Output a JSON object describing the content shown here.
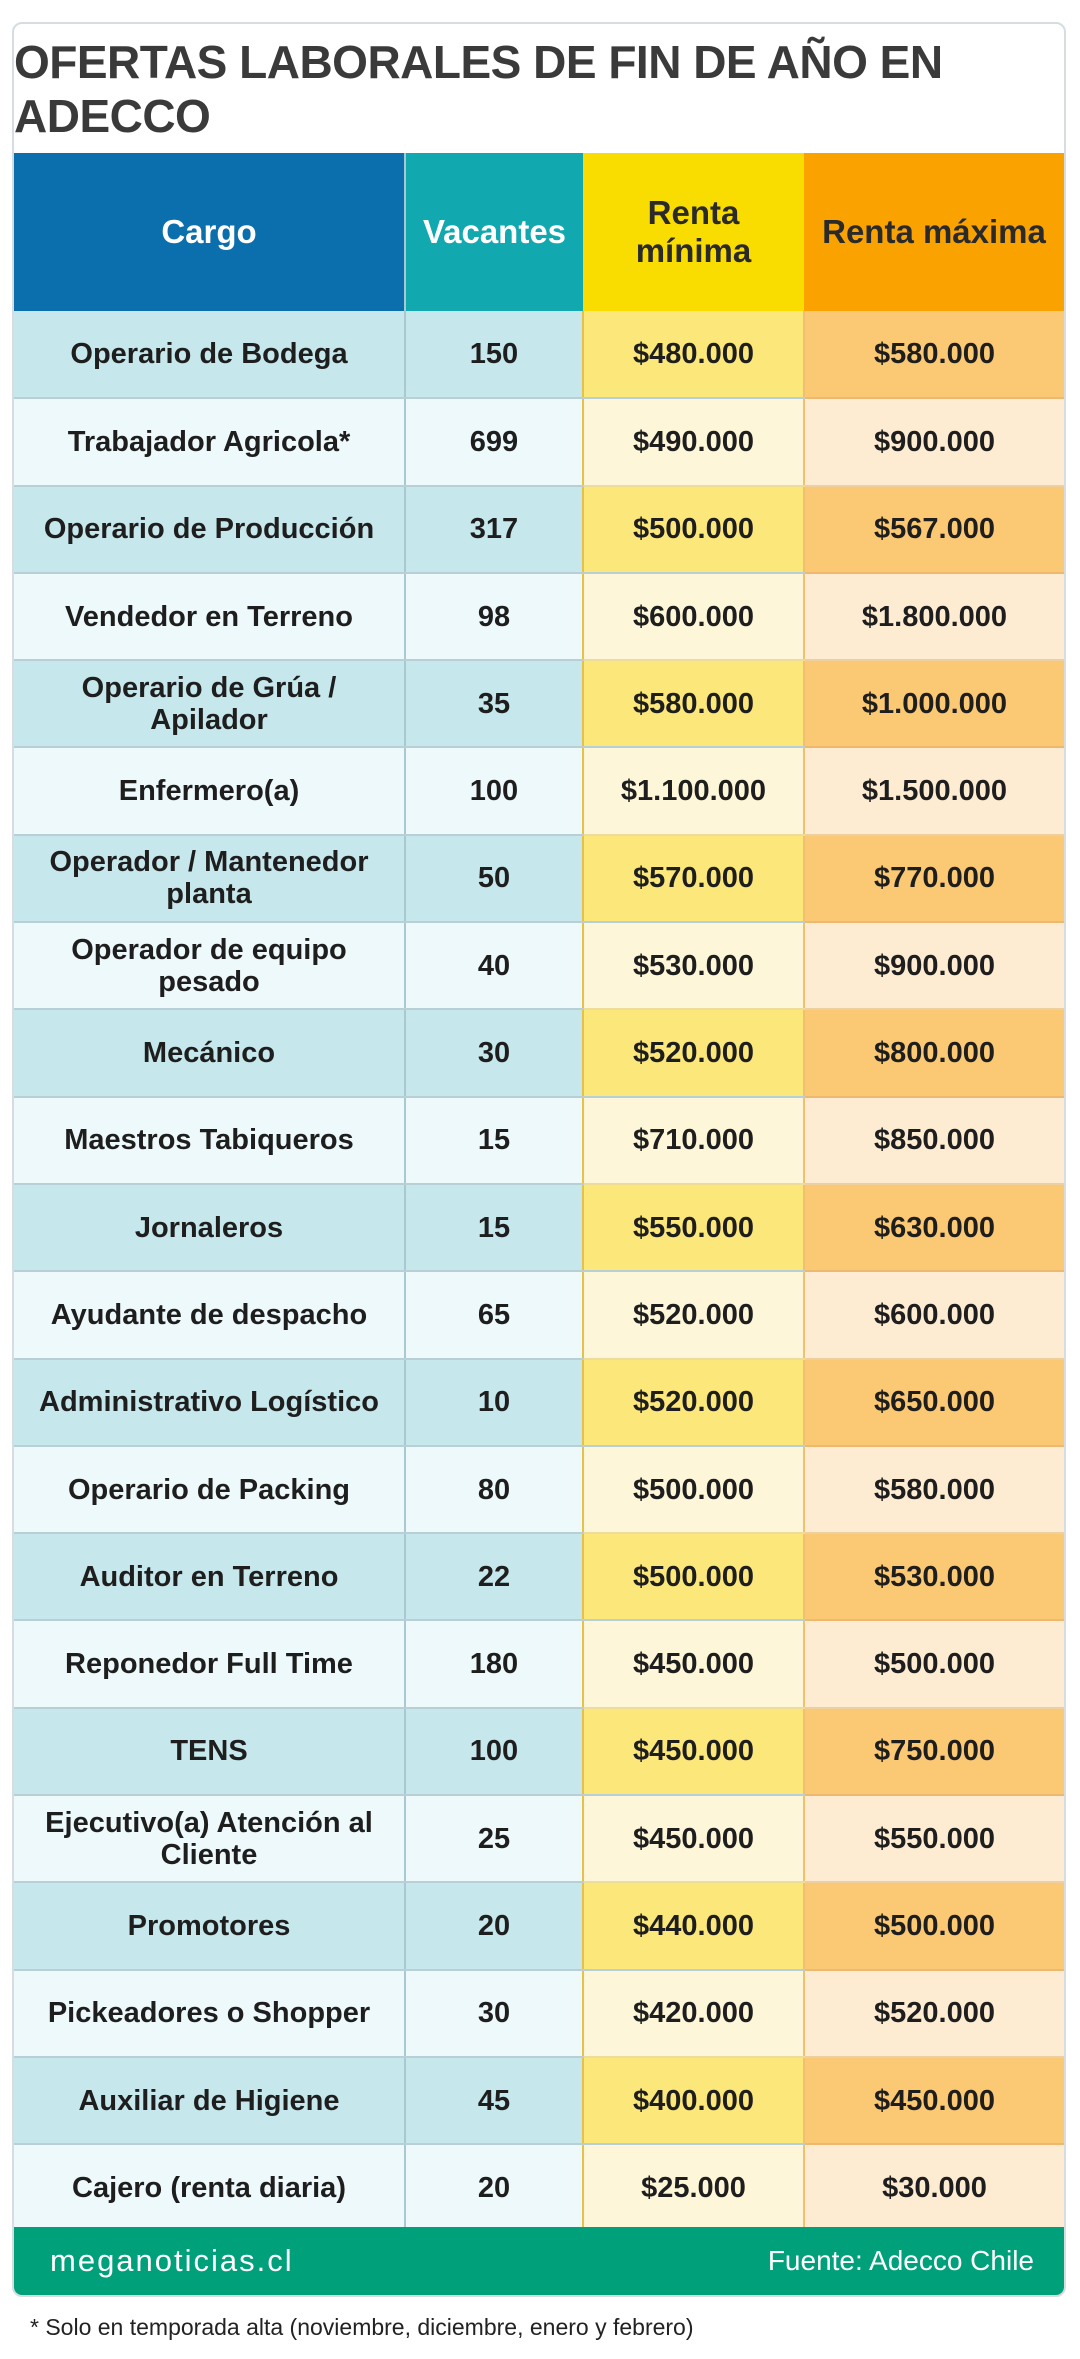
{
  "header": {
    "title": "OFERTAS LABORALES DE FIN DE AÑO EN ADECCO"
  },
  "table": {
    "columns": [
      "Cargo",
      "Vacantes",
      "Renta mínima",
      "Renta máxima"
    ],
    "rows": [
      [
        "Operario de Bodega",
        "150",
        "$480.000",
        "$580.000"
      ],
      [
        "Trabajador Agricola*",
        "699",
        "$490.000",
        "$900.000"
      ],
      [
        "Operario de Producción",
        "317",
        "$500.000",
        "$567.000"
      ],
      [
        "Vendedor en Terreno",
        "98",
        "$600.000",
        "$1.800.000"
      ],
      [
        "Operario de Grúa / Apilador",
        "35",
        "$580.000",
        "$1.000.000"
      ],
      [
        "Enfermero(a)",
        "100",
        "$1.100.000",
        "$1.500.000"
      ],
      [
        "Operador / Mantenedor planta",
        "50",
        "$570.000",
        "$770.000"
      ],
      [
        "Operador de equipo pesado",
        "40",
        "$530.000",
        "$900.000"
      ],
      [
        "Mecánico",
        "30",
        "$520.000",
        "$800.000"
      ],
      [
        "Maestros Tabiqueros",
        "15",
        "$710.000",
        "$850.000"
      ],
      [
        "Jornaleros",
        "15",
        "$550.000",
        "$630.000"
      ],
      [
        "Ayudante de despacho",
        "65",
        "$520.000",
        "$600.000"
      ],
      [
        "Administrativo Logístico",
        "10",
        "$520.000",
        "$650.000"
      ],
      [
        "Operario de Packing",
        "80",
        "$500.000",
        "$580.000"
      ],
      [
        "Auditor en Terreno",
        "22",
        "$500.000",
        "$530.000"
      ],
      [
        "Reponedor Full Time",
        "180",
        "$450.000",
        "$500.000"
      ],
      [
        "TENS",
        "100",
        "$450.000",
        "$750.000"
      ],
      [
        "Ejecutivo(a) Atención al Cliente",
        "25",
        "$450.000",
        "$550.000"
      ],
      [
        "Promotores",
        "20",
        "$440.000",
        "$500.000"
      ],
      [
        "Pickeadores o Shopper",
        "30",
        "$420.000",
        "$520.000"
      ],
      [
        "Auxiliar de Higiene",
        "45",
        "$400.000",
        "$450.000"
      ],
      [
        "Cajero (renta diaria)",
        "20",
        "$25.000",
        "$30.000"
      ]
    ]
  },
  "footer": {
    "brand": "meganoticias.cl",
    "source": "Fuente: Adecco Chile"
  },
  "footnote": "* Solo en temporada alta (noviembre, diciembre, enero y febrero)"
}
